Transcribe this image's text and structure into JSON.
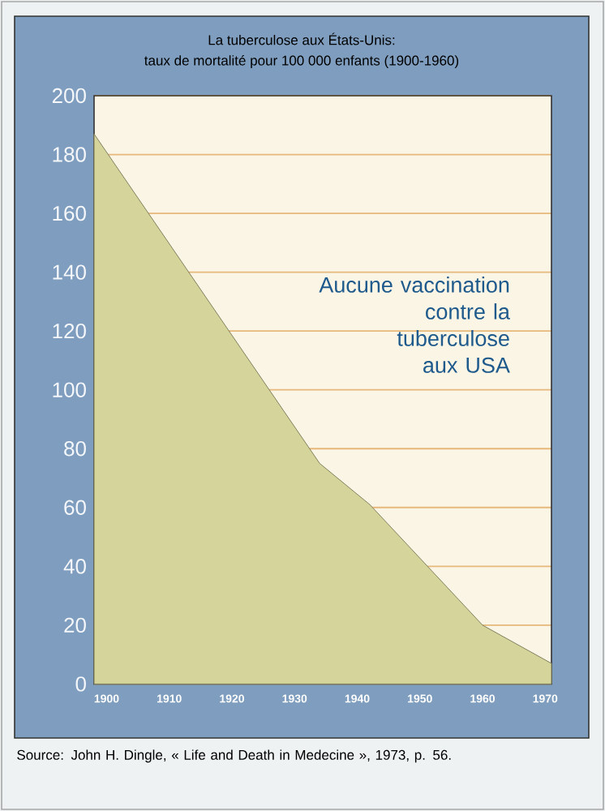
{
  "chart_data": {
    "type": "area",
    "title": "La tuberculose aux États-Unis:",
    "subtitle": "taux de mortalité pour 100 000 enfants (1900-1960)",
    "x": [
      1898,
      1934,
      1942,
      1960,
      1971
    ],
    "series": [
      {
        "color": "#d5d59b",
        "values": [
          187,
          75,
          61,
          20,
          7
        ]
      }
    ],
    "xlim": [
      1898,
      1971
    ],
    "xticks": [
      1900,
      1910,
      1920,
      1930,
      1940,
      1950,
      1960,
      1970
    ],
    "ylim": [
      0,
      200
    ],
    "yticks": [
      0,
      20,
      40,
      60,
      80,
      100,
      120,
      140,
      160,
      180,
      200
    ],
    "grid": "y",
    "annotations": [
      "Aucune vaccination contre la tuberculose aux USA",
      "Source: John H. Dingle, « Life and Death in Medecine », 1973, p. 56."
    ]
  }
}
